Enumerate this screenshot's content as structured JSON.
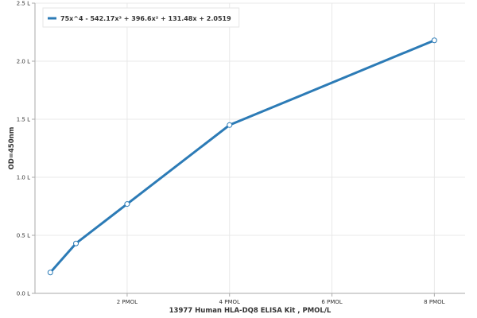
{
  "chart_data": {
    "type": "line",
    "xlabel": "13977 Human HLA-DQ8 ELISA Kit , PMOL/L",
    "ylabel": "OD=450nm",
    "xlim": [
      0.2,
      8.6
    ],
    "ylim": [
      0,
      2.5
    ],
    "x_ticks": [
      {
        "value": 2,
        "label": "2 PMOL"
      },
      {
        "value": 4,
        "label": "4 PMOL"
      },
      {
        "value": 6,
        "label": "6 PMOL"
      },
      {
        "value": 8,
        "label": "8 PMOL"
      }
    ],
    "y_ticks": [
      {
        "value": 0.0,
        "label": "0.0 L"
      },
      {
        "value": 0.5,
        "label": "0.5 L"
      },
      {
        "value": 1.0,
        "label": "1.0 L"
      },
      {
        "value": 1.5,
        "label": "1.5 L"
      },
      {
        "value": 2.0,
        "label": "2.0 L"
      },
      {
        "value": 2.5,
        "label": "2.5 L"
      }
    ],
    "grid": true,
    "legend_position": "top-left",
    "series": [
      {
        "name": "75x^4 - 542.17x³ + 396.6x² + 131.48x + 2.0519",
        "color": "#2c7bb6",
        "x": [
          0.5,
          1,
          2,
          4,
          8
        ],
        "y": [
          0.18,
          0.43,
          0.77,
          1.45,
          2.18
        ]
      }
    ]
  }
}
